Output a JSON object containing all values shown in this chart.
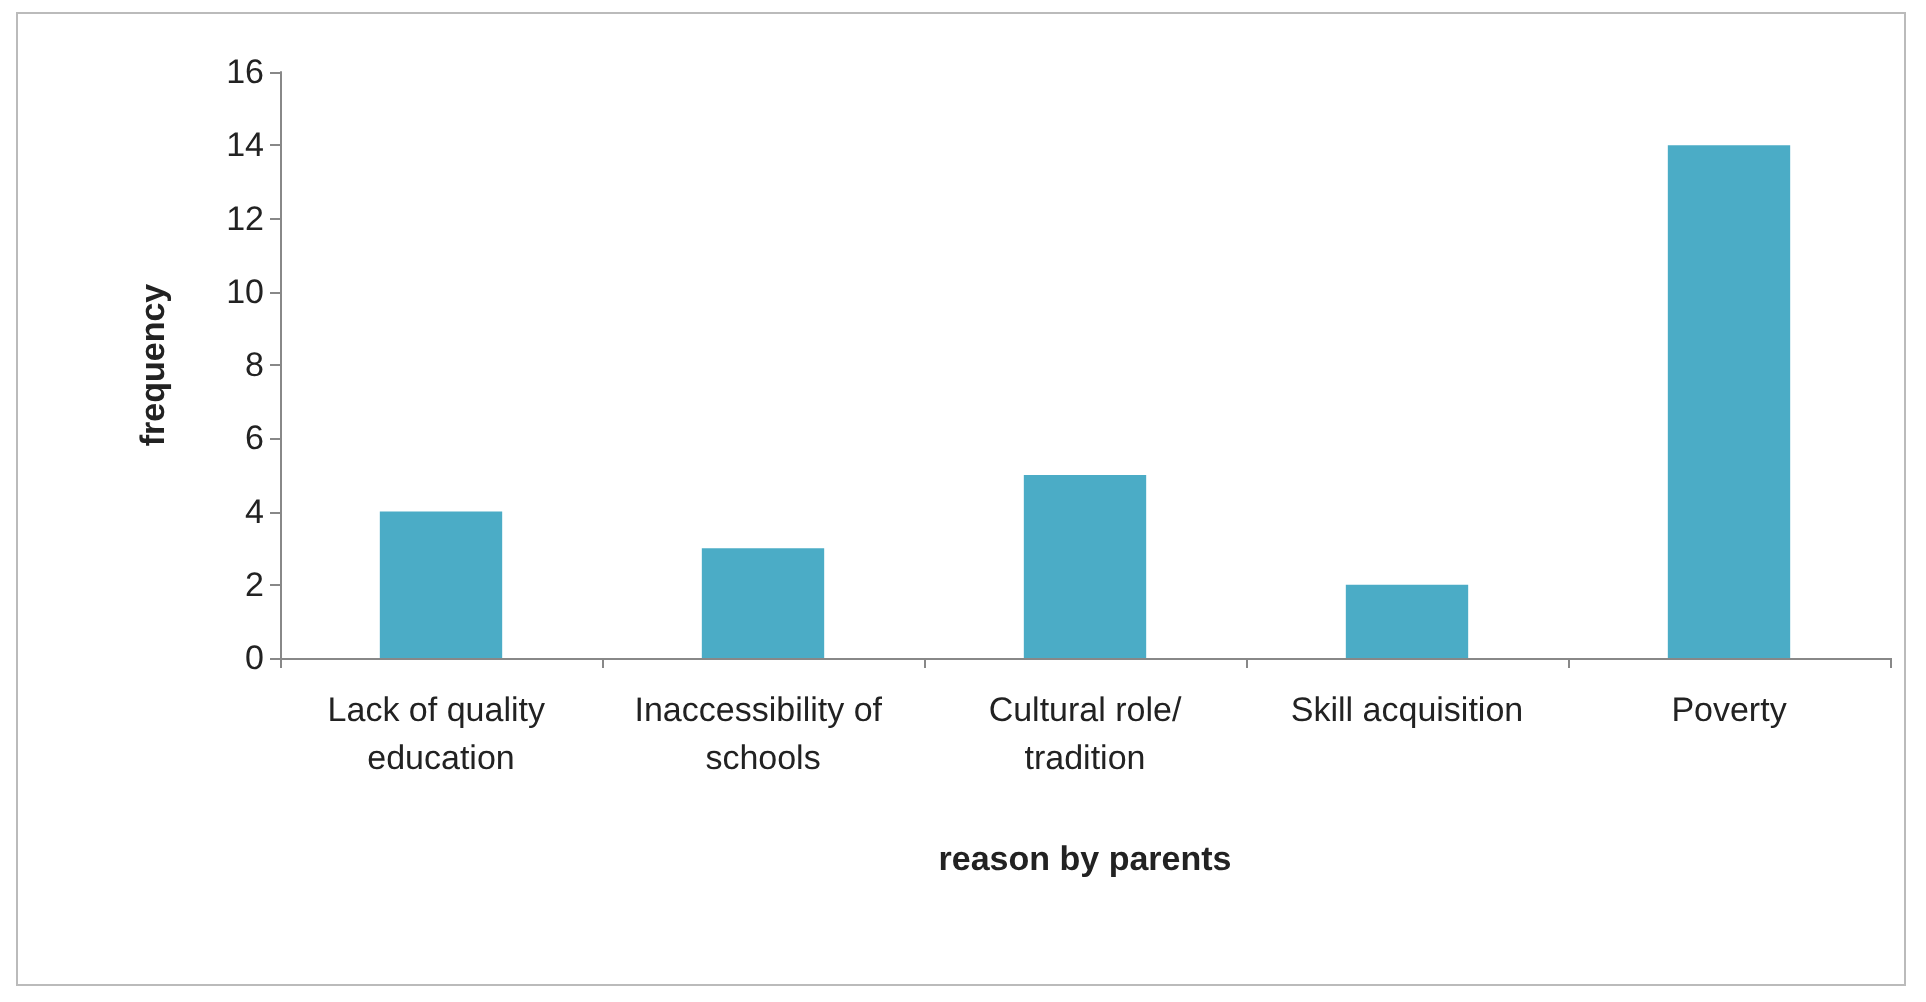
{
  "chart_data": {
    "type": "bar",
    "xlabel": "reason by parents",
    "ylabel": "frequency",
    "categories": [
      "Lack of quality education",
      "Inaccessibility of schools",
      "Cultural role/tradition",
      "Skill acquisition",
      "Poverty"
    ],
    "values": [
      4,
      3,
      5,
      2,
      14
    ],
    "color": "#4bacc6",
    "ylim": [
      0,
      16
    ],
    "yticks": [
      0,
      2,
      4,
      6,
      8,
      10,
      12,
      14,
      16
    ],
    "grid": false
  }
}
